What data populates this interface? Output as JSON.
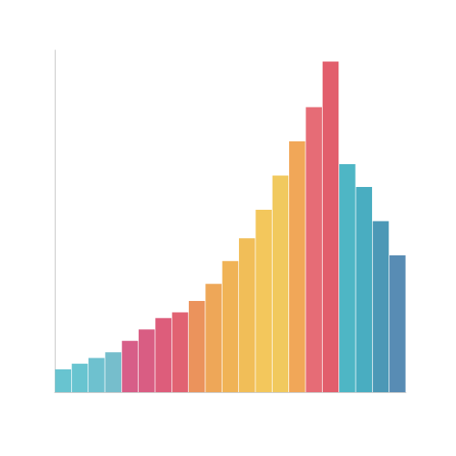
{
  "chart_data": {
    "type": "bar",
    "categories": [
      null,
      null,
      null,
      null,
      null,
      null,
      null,
      null,
      null,
      null,
      null,
      null,
      null,
      null,
      null,
      null,
      null,
      null,
      null,
      null,
      null
    ],
    "values": [
      4,
      5,
      6,
      7,
      9,
      11,
      13,
      14,
      16,
      19,
      23,
      27,
      32,
      38,
      44,
      50,
      58,
      40,
      36,
      30,
      24
    ],
    "colors": [
      "#5bbfcc",
      "#5bbfcc",
      "#62bccb",
      "#6ab8c8",
      "#d4507e",
      "#d64f78",
      "#da4f70",
      "#de5566",
      "#e98a4e",
      "#eda04a",
      "#efac48",
      "#f0b94a",
      "#f2c24e",
      "#f0c450",
      "#f0a04a",
      "#e4606a",
      "#e0505f",
      "#3fb0c0",
      "#3aa6bc",
      "#3d8fb0",
      "#4a82ae"
    ],
    "ylim": [
      0,
      60
    ],
    "grid": false,
    "tick_labels": false
  }
}
